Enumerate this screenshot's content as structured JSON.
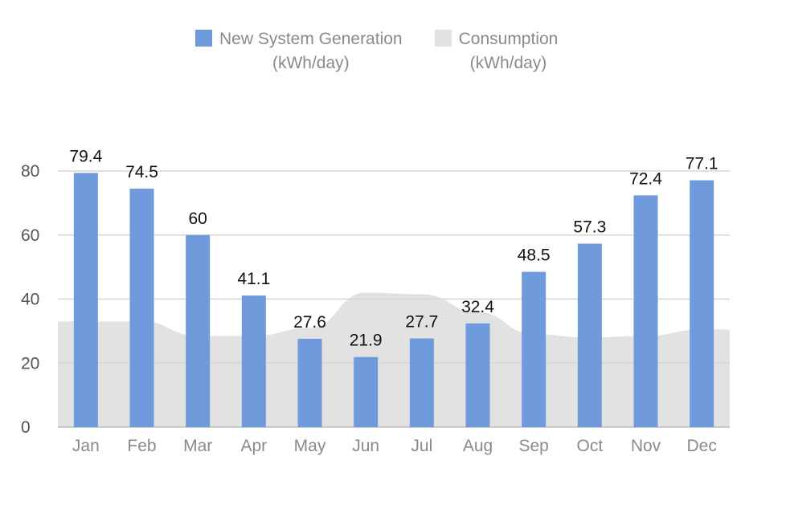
{
  "chart_data": {
    "type": "bar",
    "categories": [
      "Jan",
      "Feb",
      "Mar",
      "Apr",
      "May",
      "Jun",
      "Jul",
      "Aug",
      "Sep",
      "Oct",
      "Nov",
      "Dec"
    ],
    "series": [
      {
        "name": "New System Generation\n(kWh/day)",
        "type": "bar",
        "color": "#6f9bdd",
        "values": [
          79.4,
          74.5,
          60,
          41.1,
          27.6,
          21.9,
          27.7,
          32.4,
          48.5,
          57.3,
          72.4,
          77.1
        ],
        "data_labels": [
          "79.4",
          "74.5",
          "60",
          "41.1",
          "27.6",
          "21.9",
          "27.7",
          "32.4",
          "48.5",
          "57.3",
          "72.4",
          "77.1"
        ]
      },
      {
        "name": "Consumption\n(kWh/day)",
        "type": "area",
        "color": "#e2e2e2",
        "values": [
          33,
          33,
          28.5,
          28.5,
          31,
          42,
          41.5,
          36,
          29,
          28,
          28.5,
          30.5
        ]
      }
    ],
    "yticks": [
      "0",
      "20",
      "40",
      "60",
      "80"
    ],
    "ylim": [
      0,
      80
    ],
    "grid": true,
    "legend": "top-center"
  }
}
